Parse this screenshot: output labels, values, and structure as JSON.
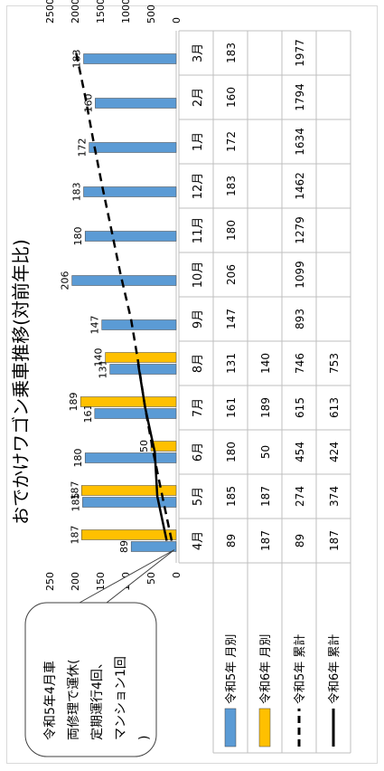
{
  "chart_data": {
    "type": "bar",
    "title": "おでかけワゴン乗車推移(対前年比)",
    "categories": [
      "4月",
      "5月",
      "6月",
      "7月",
      "8月",
      "9月",
      "10月",
      "11月",
      "12月",
      "1月",
      "2月",
      "3月"
    ],
    "series": [
      {
        "name": "令和5年 月別",
        "kind": "bar",
        "axis": "left",
        "color": "#5b9bd5",
        "values": [
          89,
          185,
          180,
          161,
          131,
          147,
          206,
          180,
          183,
          172,
          160,
          183
        ]
      },
      {
        "name": "令和6年 月別",
        "kind": "bar",
        "axis": "left",
        "color": "#ffc000",
        "values": [
          187,
          187,
          50,
          189,
          140,
          null,
          null,
          null,
          null,
          null,
          null,
          null
        ]
      },
      {
        "name": "令和5年 累計",
        "kind": "line",
        "style": "dashed",
        "axis": "right",
        "color": "#000000",
        "values": [
          89,
          274,
          454,
          615,
          746,
          893,
          1099,
          1279,
          1462,
          1634,
          1794,
          1977
        ]
      },
      {
        "name": "令和6年 累計",
        "kind": "line",
        "style": "solid",
        "axis": "right",
        "color": "#000000",
        "values": [
          187,
          374,
          424,
          613,
          753,
          null,
          null,
          null,
          null,
          null,
          null,
          null
        ]
      }
    ],
    "left_axis": {
      "ticks": [
        "0",
        "50",
        "100",
        "150",
        "200",
        "250"
      ],
      "range": [
        0,
        250
      ]
    },
    "right_axis": {
      "ticks": [
        "0",
        "500",
        "1000",
        "1500",
        "2000",
        "2500"
      ],
      "range": [
        0,
        2500
      ]
    },
    "callout": "令和5年4月車両修理で運休(定期運行4回、マンション1回)",
    "legend_position": "bottom-table",
    "grid": false
  },
  "colors": {
    "r5": "#5b9bd5",
    "r6": "#ffc000",
    "line": "#000000"
  }
}
